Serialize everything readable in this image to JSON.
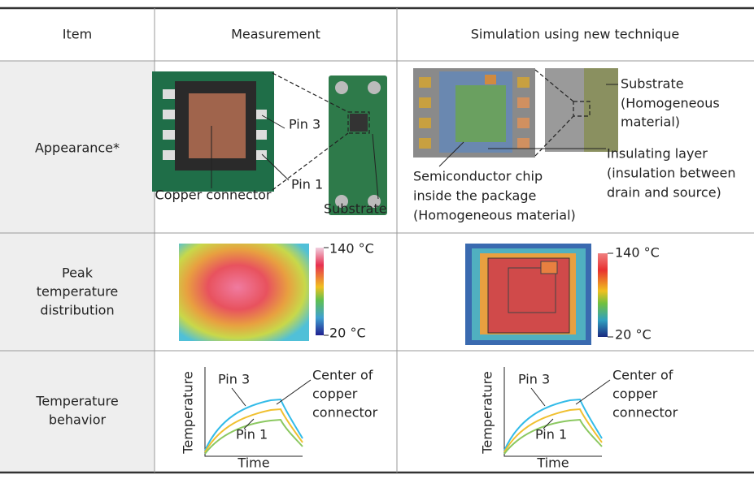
{
  "table": {
    "header": [
      "Item",
      "Measurement",
      "Simulation using new technique"
    ],
    "rows": [
      {
        "item": [
          "Appearance*"
        ],
        "measurement": {
          "copper_connector": "Copper connector",
          "pin3": "Pin 3",
          "pin1": "Pin 1",
          "substrate": "Substrate"
        },
        "simulation": {
          "substrate": [
            "Substrate",
            "(Homogeneous",
            "material)"
          ],
          "insulating_layer": [
            "Insulating layer",
            "(insulation between",
            "drain and source)"
          ],
          "chip": [
            "Semiconductor chip",
            "inside the package",
            "(Homogeneous material)"
          ]
        }
      },
      {
        "item": [
          "Peak",
          "temperature",
          "distribution"
        ],
        "measurement": {
          "max": "140 °C",
          "min": "20 °C"
        },
        "simulation": {
          "max": "140 °C",
          "min": "20 °C"
        }
      },
      {
        "item": [
          "Temperature",
          "behavior"
        ],
        "measurement": {
          "y_axis": "Temperature",
          "x_axis": "Time",
          "pin3": "Pin 3",
          "pin1": "Pin 1",
          "center": [
            "Center of",
            "copper",
            "connector"
          ]
        },
        "simulation": {
          "y_axis": "Temperature",
          "x_axis": "Time",
          "pin3": "Pin 3",
          "pin1": "Pin 1",
          "center": [
            "Center of",
            "copper",
            "connector"
          ]
        }
      }
    ]
  }
}
